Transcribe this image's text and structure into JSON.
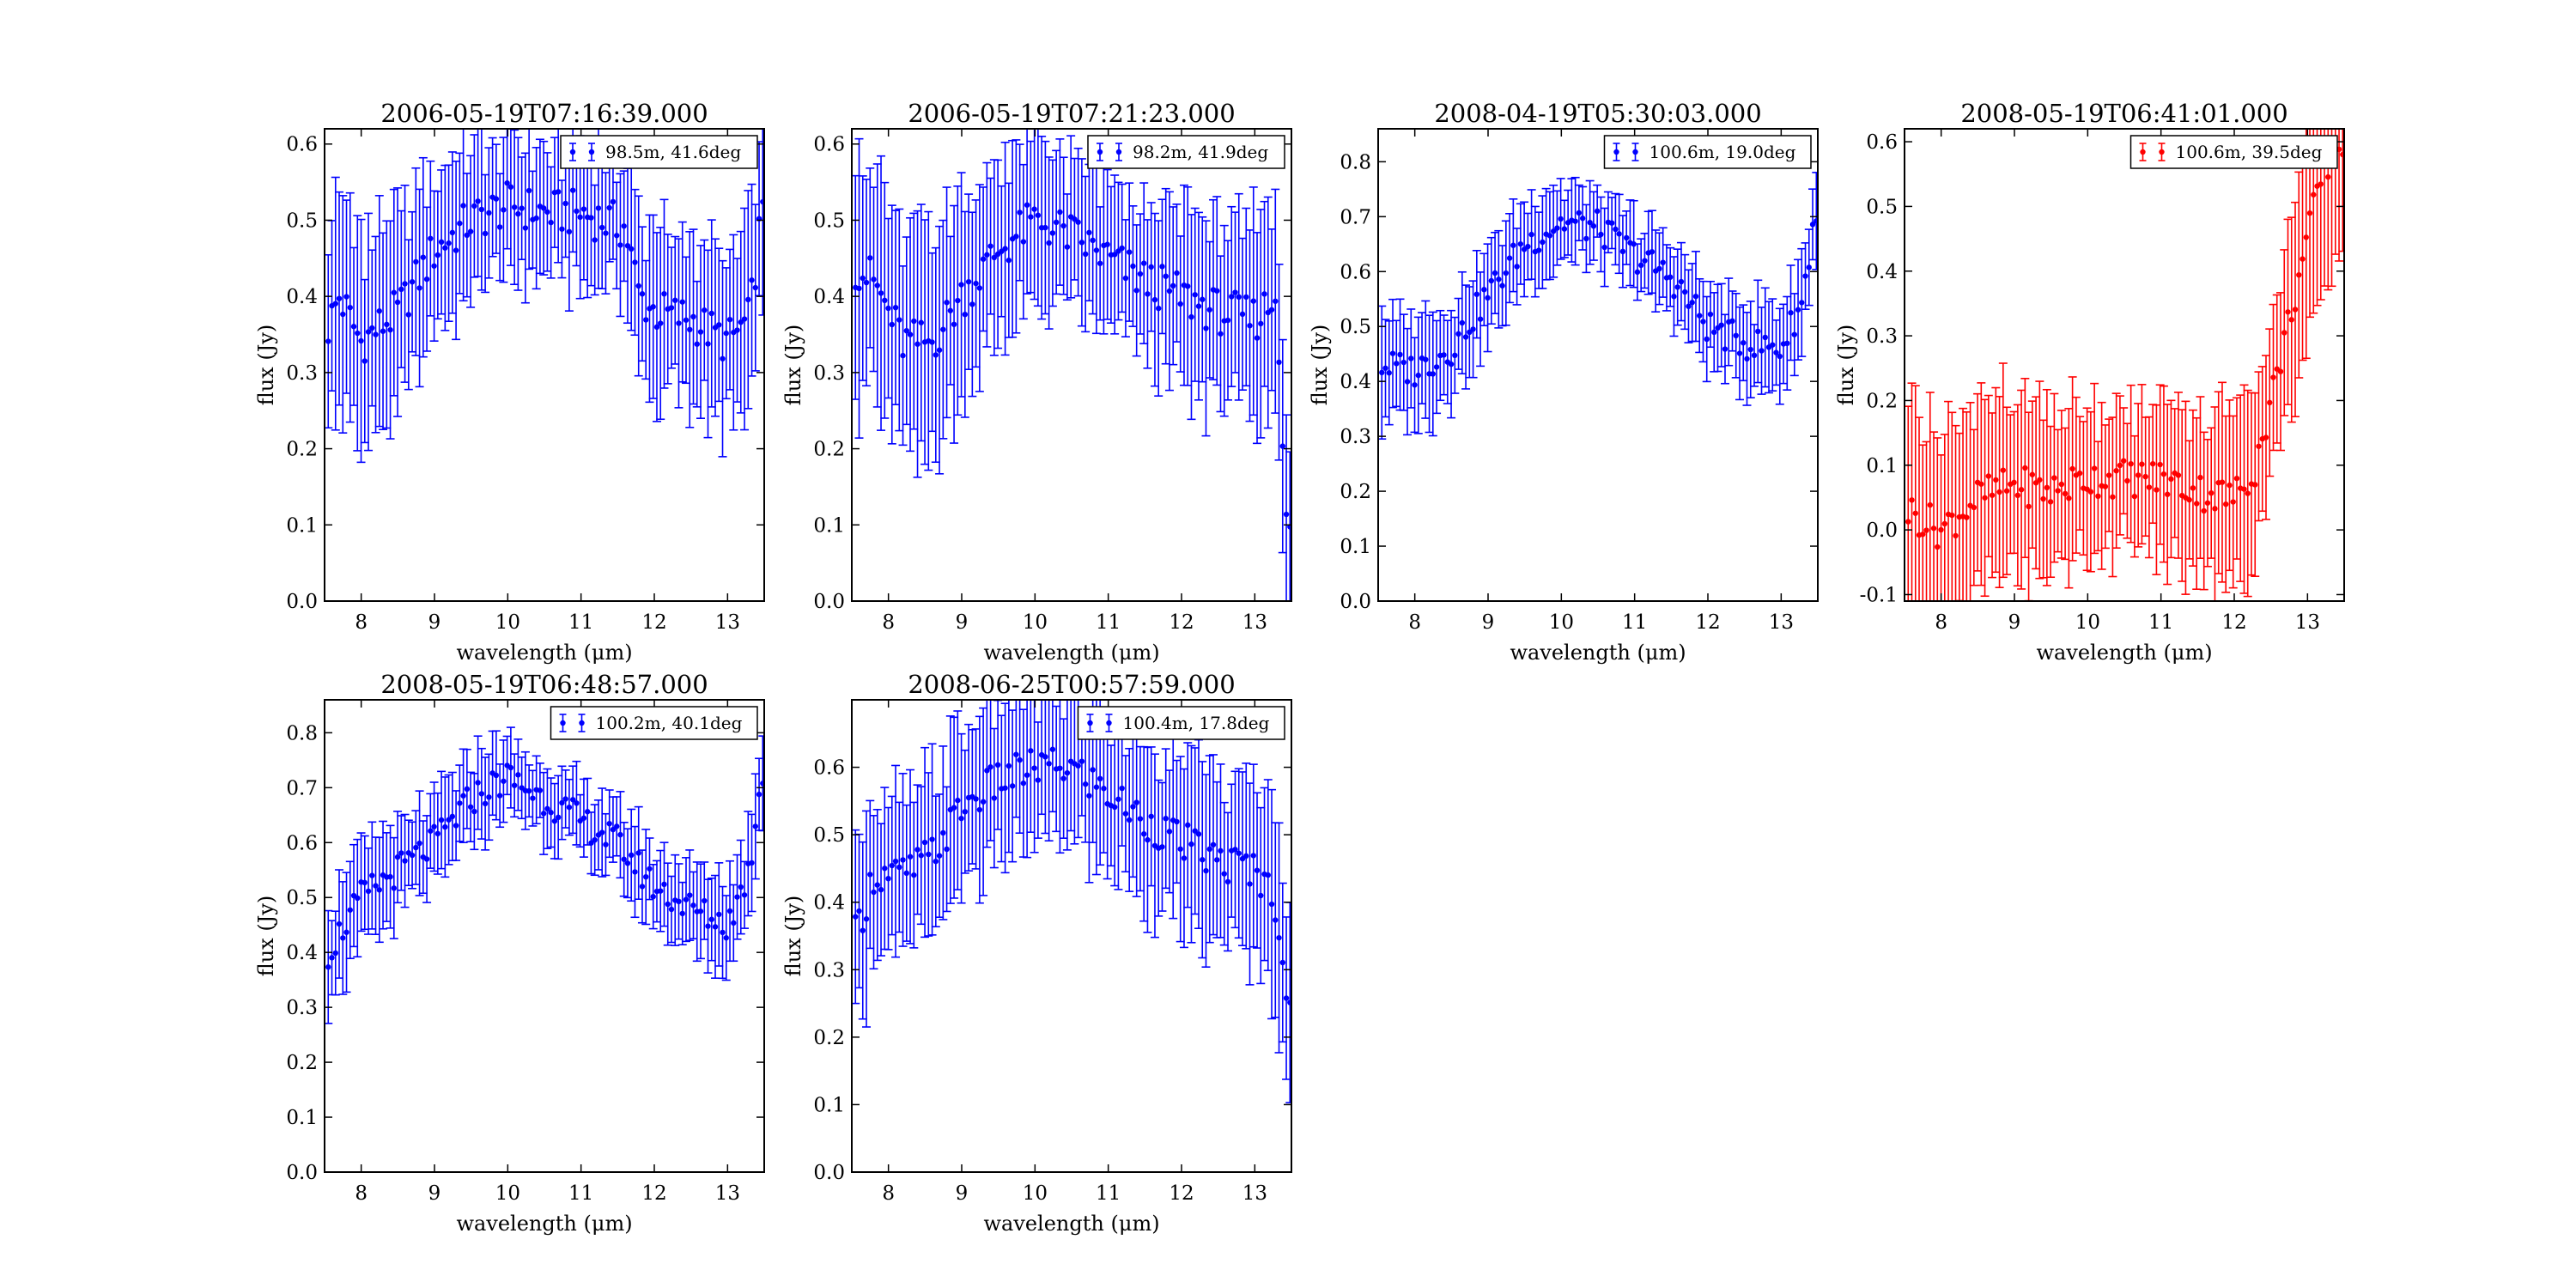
{
  "chart_data": [
    {
      "type": "errorbar",
      "title": "2006-05-19T07:16:39.000",
      "xlabel": "wavelength (μm)",
      "ylabel": "flux (Jy)",
      "xlim": [
        7.5,
        13.5
      ],
      "ylim": [
        0.0,
        0.62
      ],
      "xticks": [
        8,
        9,
        10,
        11,
        12,
        13
      ],
      "yticks": [
        0.0,
        0.1,
        0.2,
        0.3,
        0.4,
        0.5,
        0.6
      ],
      "legend": "top-right",
      "series": [
        {
          "name": "98.5m, 41.6deg",
          "color": "#0000ff",
          "anchors_x": [
            7.55,
            7.7,
            8.0,
            8.5,
            9.0,
            9.5,
            10.0,
            10.5,
            11.0,
            11.3,
            11.6,
            11.8,
            12.0,
            12.5,
            13.0,
            13.3,
            13.45
          ],
          "anchors_y": [
            0.36,
            0.4,
            0.34,
            0.38,
            0.46,
            0.5,
            0.52,
            0.51,
            0.51,
            0.5,
            0.49,
            0.4,
            0.38,
            0.37,
            0.34,
            0.37,
            0.5
          ],
          "err_start": 0.14,
          "err_mid": 0.08,
          "err_end": 0.12
        }
      ]
    },
    {
      "type": "errorbar",
      "title": "2006-05-19T07:21:23.000",
      "xlabel": "wavelength (μm)",
      "ylabel": "flux (Jy)",
      "xlim": [
        7.5,
        13.5
      ],
      "ylim": [
        0.0,
        0.62
      ],
      "xticks": [
        8,
        9,
        10,
        11,
        12,
        13
      ],
      "yticks": [
        0.0,
        0.1,
        0.2,
        0.3,
        0.4,
        0.5,
        0.6
      ],
      "legend": "top-right",
      "series": [
        {
          "name": "98.2m, 41.9deg",
          "color": "#0000ff",
          "anchors_x": [
            7.55,
            7.8,
            8.2,
            8.6,
            9.0,
            9.5,
            10.0,
            10.5,
            11.0,
            11.5,
            12.0,
            12.5,
            13.0,
            13.3,
            13.45
          ],
          "anchors_y": [
            0.44,
            0.42,
            0.34,
            0.34,
            0.4,
            0.46,
            0.5,
            0.48,
            0.45,
            0.42,
            0.4,
            0.38,
            0.37,
            0.4,
            0.08
          ],
          "err_start": 0.16,
          "err_mid": 0.09,
          "err_end": 0.13
        }
      ]
    },
    {
      "type": "errorbar",
      "title": "2008-04-19T05:30:03.000",
      "xlabel": "wavelength (μm)",
      "ylabel": "flux (Jy)",
      "xlim": [
        7.5,
        13.5
      ],
      "ylim": [
        0.0,
        0.86
      ],
      "xticks": [
        8,
        9,
        10,
        11,
        12,
        13
      ],
      "yticks": [
        0.0,
        0.1,
        0.2,
        0.3,
        0.4,
        0.5,
        0.6,
        0.7,
        0.8
      ],
      "legend": "top-right",
      "series": [
        {
          "name": "100.6m, 19.0deg",
          "color": "#0000ff",
          "anchors_x": [
            7.55,
            8.0,
            8.5,
            9.0,
            9.5,
            10.0,
            10.5,
            11.0,
            11.5,
            12.0,
            12.5,
            13.0,
            13.3,
            13.45
          ],
          "anchors_y": [
            0.43,
            0.42,
            0.46,
            0.56,
            0.65,
            0.69,
            0.68,
            0.63,
            0.59,
            0.5,
            0.47,
            0.46,
            0.55,
            0.7
          ],
          "err_start": 0.1,
          "err_mid": 0.06,
          "err_end": 0.08
        }
      ]
    },
    {
      "type": "errorbar",
      "title": "2008-05-19T06:41:01.000",
      "xlabel": "wavelength (μm)",
      "ylabel": "flux (Jy)",
      "xlim": [
        7.5,
        13.5
      ],
      "ylim": [
        -0.11,
        0.62
      ],
      "xticks": [
        8,
        9,
        10,
        11,
        12,
        13
      ],
      "yticks": [
        -0.1,
        0.0,
        0.1,
        0.2,
        0.3,
        0.4,
        0.5,
        0.6
      ],
      "legend": "top-right",
      "series": [
        {
          "name": "100.6m, 39.5deg",
          "color": "#ff0000",
          "anchors_x": [
            7.55,
            8.0,
            8.5,
            9.0,
            9.5,
            10.0,
            10.5,
            11.0,
            11.5,
            12.0,
            12.3,
            12.6,
            12.9,
            13.2,
            13.45
          ],
          "anchors_y": [
            0.03,
            0.0,
            0.05,
            0.07,
            0.06,
            0.08,
            0.08,
            0.08,
            0.06,
            0.05,
            0.1,
            0.25,
            0.4,
            0.55,
            0.6
          ],
          "err_start": 0.16,
          "err_mid": 0.1,
          "err_end": 0.17
        }
      ]
    },
    {
      "type": "errorbar",
      "title": "2008-05-19T06:48:57.000",
      "xlabel": "wavelength (μm)",
      "ylabel": "flux (Jy)",
      "xlim": [
        7.5,
        13.5
      ],
      "ylim": [
        0.0,
        0.86
      ],
      "xticks": [
        8,
        9,
        10,
        11,
        12,
        13
      ],
      "yticks": [
        0.0,
        0.1,
        0.2,
        0.3,
        0.4,
        0.5,
        0.6,
        0.7,
        0.8
      ],
      "legend": "top-right",
      "series": [
        {
          "name": "100.2m, 40.1deg",
          "color": "#0000ff",
          "anchors_x": [
            7.55,
            8.0,
            8.5,
            9.0,
            9.5,
            10.0,
            10.5,
            11.0,
            11.5,
            12.0,
            12.5,
            13.0,
            13.3,
            13.45
          ],
          "anchors_y": [
            0.4,
            0.5,
            0.55,
            0.6,
            0.68,
            0.72,
            0.68,
            0.64,
            0.6,
            0.52,
            0.48,
            0.45,
            0.55,
            0.72
          ],
          "err_start": 0.09,
          "err_mid": 0.06,
          "err_end": 0.08
        }
      ]
    },
    {
      "type": "errorbar",
      "title": "2008-06-25T00:57:59.000",
      "xlabel": "wavelength (μm)",
      "ylabel": "flux (Jy)",
      "xlim": [
        7.5,
        13.5
      ],
      "ylim": [
        0.0,
        0.7
      ],
      "xticks": [
        8,
        9,
        10,
        11,
        12,
        13
      ],
      "yticks": [
        0.0,
        0.1,
        0.2,
        0.3,
        0.4,
        0.5,
        0.6
      ],
      "legend": "top-right",
      "series": [
        {
          "name": "100.4m, 17.8deg",
          "color": "#0000ff",
          "anchors_x": [
            7.55,
            7.8,
            8.2,
            8.6,
            9.0,
            9.5,
            10.0,
            10.5,
            11.0,
            11.5,
            12.0,
            12.5,
            13.0,
            13.3,
            13.45
          ],
          "anchors_y": [
            0.35,
            0.44,
            0.44,
            0.47,
            0.54,
            0.58,
            0.6,
            0.6,
            0.56,
            0.52,
            0.49,
            0.46,
            0.45,
            0.4,
            0.25
          ],
          "err_start": 0.13,
          "err_mid": 0.1,
          "err_end": 0.14
        }
      ]
    }
  ]
}
